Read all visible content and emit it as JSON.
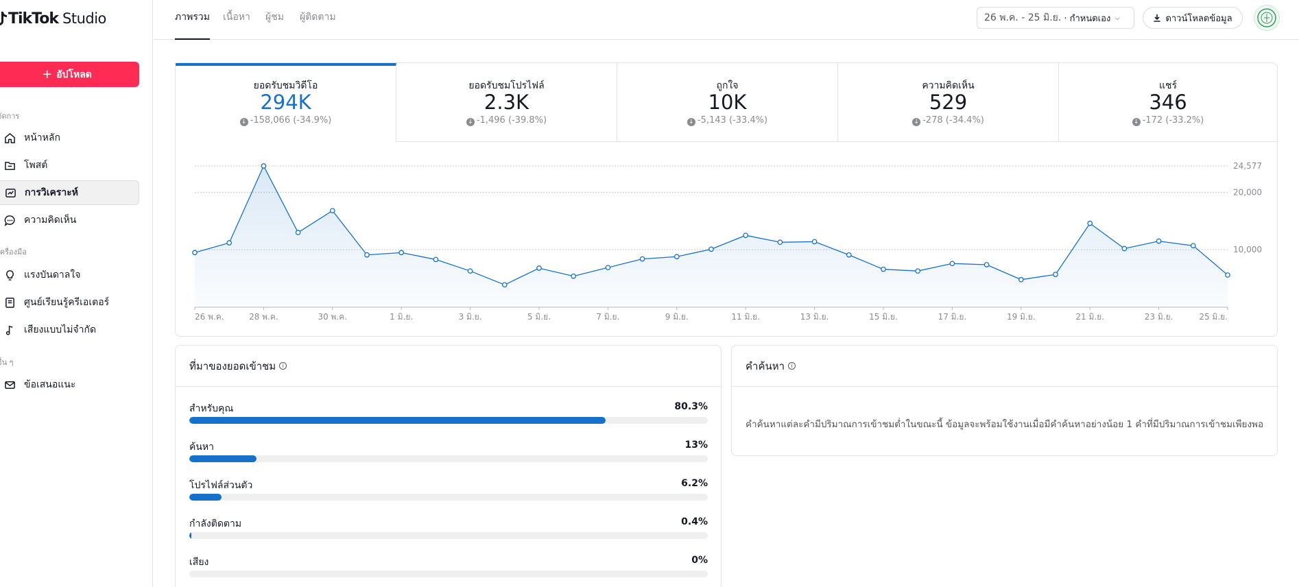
{
  "app": {
    "brand": "TikTok",
    "studio": "Studio"
  },
  "sidebar": {
    "upload_label": "อัปโหลด",
    "sections": [
      "จัดการ",
      "เครื่องมือ",
      "อื่น ๆ"
    ],
    "items": [
      {
        "label": "หน้าหลัก",
        "icon": "home-icon"
      },
      {
        "label": "โพสต์",
        "icon": "folder-icon"
      },
      {
        "label": "การวิเคราะห์",
        "icon": "analytics-icon",
        "active": true
      },
      {
        "label": "ความคิดเห็น",
        "icon": "comment-icon"
      },
      {
        "label": "แรงบันดาลใจ",
        "icon": "lightbulb-icon"
      },
      {
        "label": "ศูนย์เรียนรู้ครีเอเตอร์",
        "icon": "book-icon"
      },
      {
        "label": "เสียงแบบไม่จำกัด",
        "icon": "music-note-icon"
      },
      {
        "label": "ข้อเสนอแนะ",
        "icon": "mail-icon"
      }
    ]
  },
  "header": {
    "tabs": [
      "ภาพรวม",
      "เนื้อหา",
      "ผู้ชม",
      "ผู้ติดตาม"
    ],
    "date_range": "26 พ.ค. - 25 มิ.ย.",
    "date_mode": "· กำหนดเอง",
    "download_label": "ดาวน์โหลดข้อมูล"
  },
  "metrics": [
    {
      "title": "ยอดรับชมวิดีโอ",
      "value": "294K",
      "change": "-158,066 (-34.9%)"
    },
    {
      "title": "ยอดรับชมโปรไฟล์",
      "value": "2.3K",
      "change": "-1,496 (-39.8%)"
    },
    {
      "title": "ถูกใจ",
      "value": "10K",
      "change": "-5,143 (-33.4%)"
    },
    {
      "title": "ความคิดเห็น",
      "value": "529",
      "change": "-278 (-34.4%)"
    },
    {
      "title": "แชร์",
      "value": "346",
      "change": "-172 (-33.2%)"
    }
  ],
  "chart_data": {
    "type": "area",
    "title": "",
    "xlabel": "",
    "ylabel": "",
    "ylim": [
      0,
      24577
    ],
    "y_ticks": [
      10000,
      20000,
      24577
    ],
    "y_tick_labels": [
      "10,000",
      "20,000",
      "24,577"
    ],
    "x_tick_labels": [
      "26 พ.ค.",
      "28 พ.ค.",
      "30 พ.ค.",
      "1 มิ.ย.",
      "3 มิ.ย.",
      "5 มิ.ย.",
      "7 มิ.ย.",
      "9 มิ.ย.",
      "11 มิ.ย.",
      "13 มิ.ย.",
      "15 มิ.ย.",
      "17 มิ.ย.",
      "19 มิ.ย.",
      "21 มิ.ย.",
      "23 มิ.ย.",
      "25 มิ.ย."
    ],
    "x_tick_indices": [
      0,
      2,
      4,
      6,
      8,
      10,
      12,
      14,
      16,
      18,
      20,
      22,
      24,
      26,
      28,
      30
    ],
    "series": [
      {
        "color": "#1770c9",
        "values": [
          9500,
          11200,
          24577,
          13000,
          16800,
          9100,
          9500,
          8300,
          6300,
          3900,
          6800,
          5400,
          6900,
          8400,
          8800,
          10100,
          12500,
          11300,
          11400,
          9100,
          6600,
          6300,
          7600,
          7400,
          4800,
          5700,
          14600,
          10200,
          11500,
          10700,
          5600
        ]
      }
    ],
    "grid": true
  },
  "traffic": {
    "title": "ที่มาของยอดเข้าชม",
    "sources": [
      {
        "label": "สำหรับคุณ",
        "percent": "80.3%",
        "value": 80.3
      },
      {
        "label": "ค้นหา",
        "percent": "13%",
        "value": 13
      },
      {
        "label": "โปรไฟล์ส่วนตัว",
        "percent": "6.2%",
        "value": 6.2
      },
      {
        "label": "กำลังติดตาม",
        "percent": "0.4%",
        "value": 0.4
      },
      {
        "label": "เสียง",
        "percent": "0%",
        "value": 0
      }
    ]
  },
  "search": {
    "title": "คำค้นหา",
    "message": "คำค้นหาแต่ละคำมีปริมาณการเข้าชมต่ำในขณะนี้ ข้อมูลจะพร้อมใช้งานเมื่อมีคำค้นหาอย่างน้อย 1 คำที่มีปริมาณการเข้าชมเพียงพอ"
  }
}
